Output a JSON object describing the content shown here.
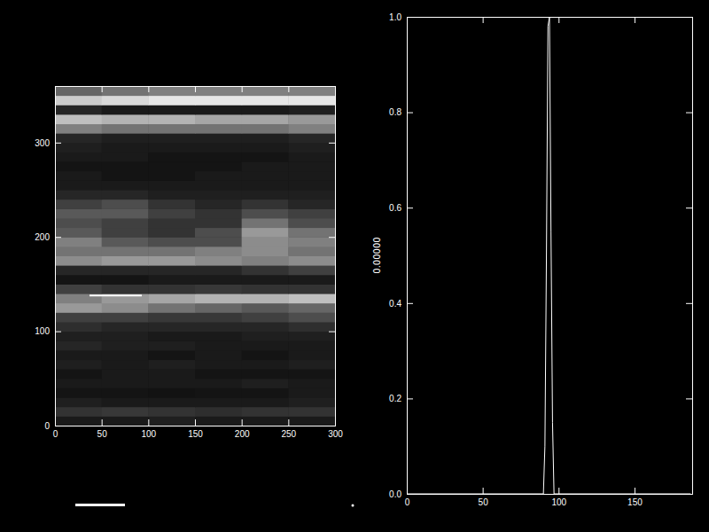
{
  "chart_data": [
    {
      "type": "heatmap",
      "xlim": [
        0,
        300
      ],
      "ylim": [
        0,
        360
      ],
      "xticks": [
        0,
        50,
        100,
        150,
        200,
        250,
        300
      ],
      "yticks": [
        0,
        100,
        200,
        300
      ],
      "xbins": [
        0,
        50,
        100,
        150,
        200,
        250,
        300
      ],
      "ybins": [
        0,
        10,
        20,
        30,
        40,
        50,
        60,
        70,
        80,
        90,
        100,
        110,
        120,
        130,
        140,
        150,
        160,
        170,
        180,
        190,
        200,
        210,
        220,
        230,
        240,
        250,
        260,
        270,
        280,
        290,
        300,
        310,
        320,
        330,
        340,
        350,
        360
      ],
      "zlim": [
        0,
        1
      ],
      "cells": [
        [
          0.1,
          0.1,
          0.12,
          0.1,
          0.1,
          0.1
        ],
        [
          0.2,
          0.22,
          0.2,
          0.18,
          0.2,
          0.2
        ],
        [
          0.12,
          0.1,
          0.1,
          0.1,
          0.1,
          0.12
        ],
        [
          0.08,
          0.08,
          0.07,
          0.08,
          0.08,
          0.1
        ],
        [
          0.1,
          0.1,
          0.1,
          0.1,
          0.12,
          0.1
        ],
        [
          0.08,
          0.1,
          0.1,
          0.08,
          0.08,
          0.08
        ],
        [
          0.12,
          0.1,
          0.12,
          0.1,
          0.1,
          0.12
        ],
        [
          0.1,
          0.1,
          0.08,
          0.1,
          0.08,
          0.1
        ],
        [
          0.15,
          0.12,
          0.12,
          0.1,
          0.1,
          0.1
        ],
        [
          0.12,
          0.12,
          0.1,
          0.1,
          0.12,
          0.12
        ],
        [
          0.18,
          0.15,
          0.15,
          0.15,
          0.15,
          0.18
        ],
        [
          0.25,
          0.25,
          0.22,
          0.22,
          0.25,
          0.3
        ],
        [
          0.6,
          0.55,
          0.45,
          0.4,
          0.35,
          0.4
        ],
        [
          0.5,
          0.6,
          0.65,
          0.7,
          0.7,
          0.75
        ],
        [
          0.25,
          0.2,
          0.2,
          0.22,
          0.2,
          0.2
        ],
        [
          0.08,
          0.08,
          0.1,
          0.1,
          0.1,
          0.1
        ],
        [
          0.15,
          0.15,
          0.15,
          0.15,
          0.2,
          0.25
        ],
        [
          0.55,
          0.6,
          0.6,
          0.55,
          0.5,
          0.55
        ],
        [
          0.45,
          0.45,
          0.45,
          0.5,
          0.55,
          0.45
        ],
        [
          0.5,
          0.35,
          0.3,
          0.3,
          0.55,
          0.5
        ],
        [
          0.35,
          0.25,
          0.2,
          0.3,
          0.6,
          0.45
        ],
        [
          0.3,
          0.25,
          0.2,
          0.2,
          0.45,
          0.3
        ],
        [
          0.35,
          0.35,
          0.25,
          0.2,
          0.3,
          0.25
        ],
        [
          0.25,
          0.3,
          0.2,
          0.15,
          0.2,
          0.15
        ],
        [
          0.15,
          0.15,
          0.12,
          0.12,
          0.12,
          0.12
        ],
        [
          0.1,
          0.1,
          0.1,
          0.1,
          0.1,
          0.1
        ],
        [
          0.1,
          0.08,
          0.08,
          0.1,
          0.1,
          0.1
        ],
        [
          0.08,
          0.08,
          0.08,
          0.08,
          0.1,
          0.1
        ],
        [
          0.1,
          0.1,
          0.08,
          0.08,
          0.08,
          0.1
        ],
        [
          0.12,
          0.1,
          0.1,
          0.1,
          0.1,
          0.12
        ],
        [
          0.15,
          0.12,
          0.12,
          0.12,
          0.12,
          0.15
        ],
        [
          0.5,
          0.45,
          0.45,
          0.45,
          0.45,
          0.5
        ],
        [
          0.75,
          0.7,
          0.7,
          0.65,
          0.65,
          0.6
        ],
        [
          0.15,
          0.1,
          0.1,
          0.1,
          0.1,
          0.12
        ],
        [
          0.8,
          0.85,
          0.9,
          0.9,
          0.9,
          0.9
        ],
        [
          0.4,
          0.45,
          0.5,
          0.5,
          0.5,
          0.5
        ]
      ],
      "series": [
        {
          "x": [
            37,
            93
          ],
          "values": [
            138,
            138
          ],
          "color": "#ffffff"
        }
      ]
    },
    {
      "type": "line",
      "y_label": "0.00000",
      "xlim": [
        0,
        188
      ],
      "ylim": [
        0,
        1
      ],
      "xticks": [
        0,
        50,
        100,
        150
      ],
      "yticks": [
        {
          "value": 0,
          "label": "0.0"
        },
        {
          "value": 0.2,
          "label": "0.2"
        },
        {
          "value": 0.4,
          "label": "0.4"
        },
        {
          "value": 0.6,
          "label": "0.6"
        },
        {
          "value": 0.8,
          "label": "0.8"
        },
        {
          "value": 1,
          "label": "1.0"
        }
      ],
      "series": [
        {
          "x": [
            0,
            90,
            91,
            92,
            93,
            94,
            95,
            96,
            97,
            187
          ],
          "values": [
            0,
            0,
            0.1,
            0.5,
            0.98,
            1.0,
            0.55,
            0.15,
            0,
            0
          ],
          "color": "#ffffff"
        }
      ]
    }
  ]
}
